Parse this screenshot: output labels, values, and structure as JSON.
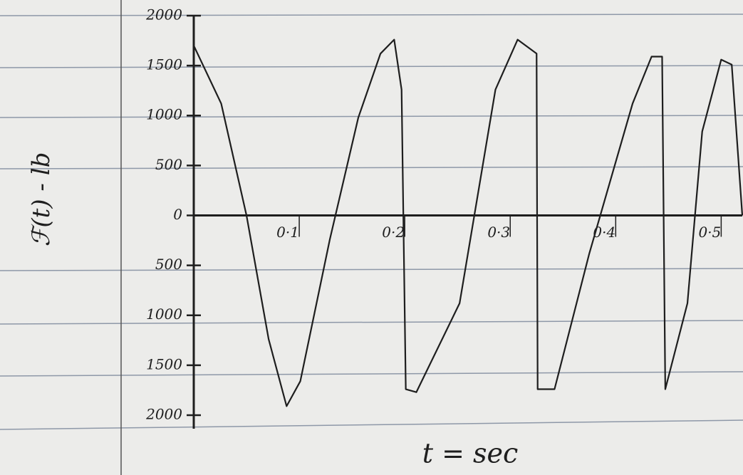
{
  "chart_data": {
    "type": "line",
    "y_label": "ℱ(t) - lb",
    "x_label": "t = sec",
    "x": [
      0,
      0.026,
      0.05,
      0.071,
      0.088,
      0.101,
      0.129,
      0.156,
      0.177,
      0.19,
      0.197,
      0.201,
      0.211,
      0.252,
      0.286,
      0.307,
      0.325,
      0.326,
      0.342,
      0.375,
      0.416,
      0.434,
      0.444,
      0.447,
      0.468,
      0.482,
      0.5,
      0.51,
      0.52
    ],
    "values": [
      1700,
      1120,
      0,
      -1240,
      -1910,
      -1660,
      -240,
      980,
      1620,
      1760,
      1260,
      -1740,
      -1770,
      -880,
      1260,
      1760,
      1620,
      -1740,
      -1740,
      -380,
      1120,
      1590,
      1590,
      -1740,
      -880,
      840,
      1560,
      1510,
      0
    ],
    "color": "#1e1e1e",
    "xlim": [
      0,
      0.52
    ],
    "ylim": [
      -2050,
      2000
    ],
    "xticks": [
      {
        "value": 0.1,
        "label": "0·1"
      },
      {
        "value": 0.2,
        "label": "0·2"
      },
      {
        "value": 0.3,
        "label": "0·3"
      },
      {
        "value": 0.4,
        "label": "0·4"
      },
      {
        "value": 0.5,
        "label": "0·5"
      }
    ],
    "yticks": [
      2000,
      1500,
      1000,
      500,
      0,
      {
        "value": -500,
        "label": "500"
      },
      {
        "value": -1000,
        "label": "1000"
      },
      {
        "value": -1500,
        "label": "1500"
      },
      {
        "value": -2000,
        "label": "2000"
      }
    ]
  }
}
